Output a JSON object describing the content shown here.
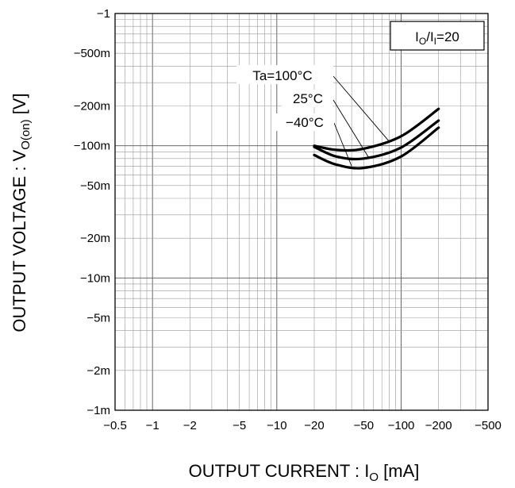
{
  "chart_data": {
    "type": "line",
    "xlabel_main": "OUTPUT CURRENT : I",
    "xlabel_sub": "O",
    "xlabel_unit": " [mA]",
    "ylabel_main": "OUTPUT VOLTAGE : V",
    "ylabel_sub": "O(on)",
    "ylabel_unit": " [V]",
    "x_scale": "log",
    "y_scale": "log",
    "xlim": [
      -0.5,
      -500
    ],
    "ylim": [
      -0.001,
      -1
    ],
    "grid": true,
    "x_ticks": [
      {
        "value": -0.5,
        "label": "−0.5"
      },
      {
        "value": -1,
        "label": "−1"
      },
      {
        "value": -2,
        "label": "−2"
      },
      {
        "value": -5,
        "label": "−5"
      },
      {
        "value": -10,
        "label": "−10"
      },
      {
        "value": -20,
        "label": "−20"
      },
      {
        "value": -50,
        "label": "−50"
      },
      {
        "value": -100,
        "label": "−100"
      },
      {
        "value": -200,
        "label": "−200"
      },
      {
        "value": -500,
        "label": "−500"
      }
    ],
    "y_ticks": [
      {
        "value": -1,
        "label": "−1"
      },
      {
        "value": -0.5,
        "label": "−500m"
      },
      {
        "value": -0.2,
        "label": "−200m"
      },
      {
        "value": -0.1,
        "label": "−100m"
      },
      {
        "value": -0.05,
        "label": "−50m"
      },
      {
        "value": -0.02,
        "label": "−20m"
      },
      {
        "value": -0.01,
        "label": "−10m"
      },
      {
        "value": -0.005,
        "label": "−5m"
      },
      {
        "value": -0.002,
        "label": "−2m"
      },
      {
        "value": -0.001,
        "label": "−1m"
      }
    ],
    "condition_box": {
      "text_main": "I",
      "text_sub1": "O",
      "text_mid": "/I",
      "text_sub2": "I",
      "text_end": "=20"
    },
    "series": [
      {
        "name": "Ta=100°C",
        "x": [
          -20,
          -30,
          -50,
          -100,
          -200
        ],
        "y": [
          -0.1,
          -0.093,
          -0.095,
          -0.118,
          -0.19
        ]
      },
      {
        "name": "25°C",
        "x": [
          -20,
          -30,
          -50,
          -100,
          -200
        ],
        "y": [
          -0.098,
          -0.083,
          -0.08,
          -0.097,
          -0.155
        ]
      },
      {
        "name": "−40°C",
        "x": [
          -20,
          -30,
          -50,
          -100,
          -200
        ],
        "y": [
          -0.085,
          -0.072,
          -0.068,
          -0.083,
          -0.137
        ]
      }
    ]
  }
}
